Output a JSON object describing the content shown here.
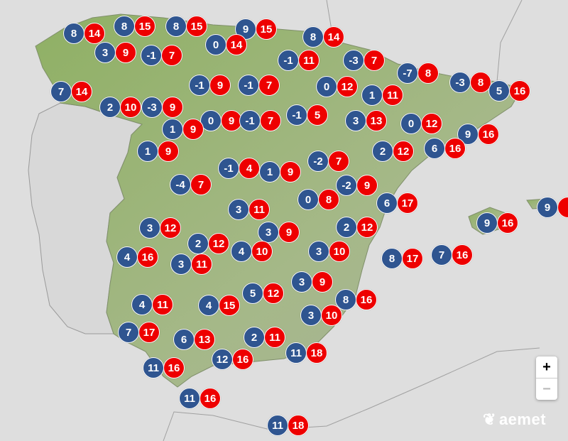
{
  "colors": {
    "min_marker": "#2f5590",
    "max_marker": "#ee0000",
    "land": "#9db27a",
    "sea": "#dedede"
  },
  "stations": [
    {
      "min": "8",
      "max": "14"
    },
    {
      "min": "8",
      "max": "15"
    },
    {
      "min": "8",
      "max": "15"
    },
    {
      "min": "9",
      "max": "15"
    },
    {
      "min": "8",
      "max": "14"
    },
    {
      "min": "0",
      "max": "14"
    },
    {
      "min": "3",
      "max": "9"
    },
    {
      "min": "-1",
      "max": "7"
    },
    {
      "min": "-1",
      "max": "11"
    },
    {
      "min": "-3",
      "max": "7"
    },
    {
      "min": "-7",
      "max": "8"
    },
    {
      "min": "-3",
      "max": "8"
    },
    {
      "min": "5",
      "max": "16"
    },
    {
      "min": "7",
      "max": "14"
    },
    {
      "min": "-1",
      "max": "9"
    },
    {
      "min": "-1",
      "max": "7"
    },
    {
      "min": "0",
      "max": "12"
    },
    {
      "min": "1",
      "max": "11"
    },
    {
      "min": "2",
      "max": "10"
    },
    {
      "min": "-3",
      "max": "9"
    },
    {
      "min": "0",
      "max": "9"
    },
    {
      "min": "-1",
      "max": "7"
    },
    {
      "min": "-1",
      "max": "5"
    },
    {
      "min": "3",
      "max": "13"
    },
    {
      "min": "0",
      "max": "12"
    },
    {
      "min": "1",
      "max": "9"
    },
    {
      "min": "9",
      "max": "16"
    },
    {
      "min": "1",
      "max": "9"
    },
    {
      "min": "2",
      "max": "12"
    },
    {
      "min": "6",
      "max": "16"
    },
    {
      "min": "-2",
      "max": "7"
    },
    {
      "min": "-1",
      "max": "4"
    },
    {
      "min": "1",
      "max": "9"
    },
    {
      "min": "-4",
      "max": "7"
    },
    {
      "min": "-2",
      "max": "9"
    },
    {
      "min": "0",
      "max": "8"
    },
    {
      "min": "6",
      "max": "17"
    },
    {
      "min": "3",
      "max": "11"
    },
    {
      "min": "9",
      "max": ""
    },
    {
      "min": "3",
      "max": "12"
    },
    {
      "min": "2",
      "max": "12"
    },
    {
      "min": "9",
      "max": "16"
    },
    {
      "min": "3",
      "max": "9"
    },
    {
      "min": "2",
      "max": "12"
    },
    {
      "min": "4",
      "max": "10"
    },
    {
      "min": "3",
      "max": "10"
    },
    {
      "min": "4",
      "max": "16"
    },
    {
      "min": "8",
      "max": "17"
    },
    {
      "min": "7",
      "max": "16"
    },
    {
      "min": "3",
      "max": "11"
    },
    {
      "min": "3",
      "max": "9"
    },
    {
      "min": "5",
      "max": "12"
    },
    {
      "min": "8",
      "max": "16"
    },
    {
      "min": "4",
      "max": "11"
    },
    {
      "min": "4",
      "max": "15"
    },
    {
      "min": "3",
      "max": "10"
    },
    {
      "min": "7",
      "max": "17"
    },
    {
      "min": "2",
      "max": "11"
    },
    {
      "min": "6",
      "max": "13"
    },
    {
      "min": "11",
      "max": "18"
    },
    {
      "min": "12",
      "max": "16"
    },
    {
      "min": "11",
      "max": "16"
    },
    {
      "min": "11",
      "max": "16"
    },
    {
      "min": "11",
      "max": "18"
    }
  ],
  "controls": {
    "zoom_in": "+",
    "zoom_out": "−"
  },
  "logo": {
    "text": "aemet",
    "icon": "aemet-logo-icon"
  }
}
